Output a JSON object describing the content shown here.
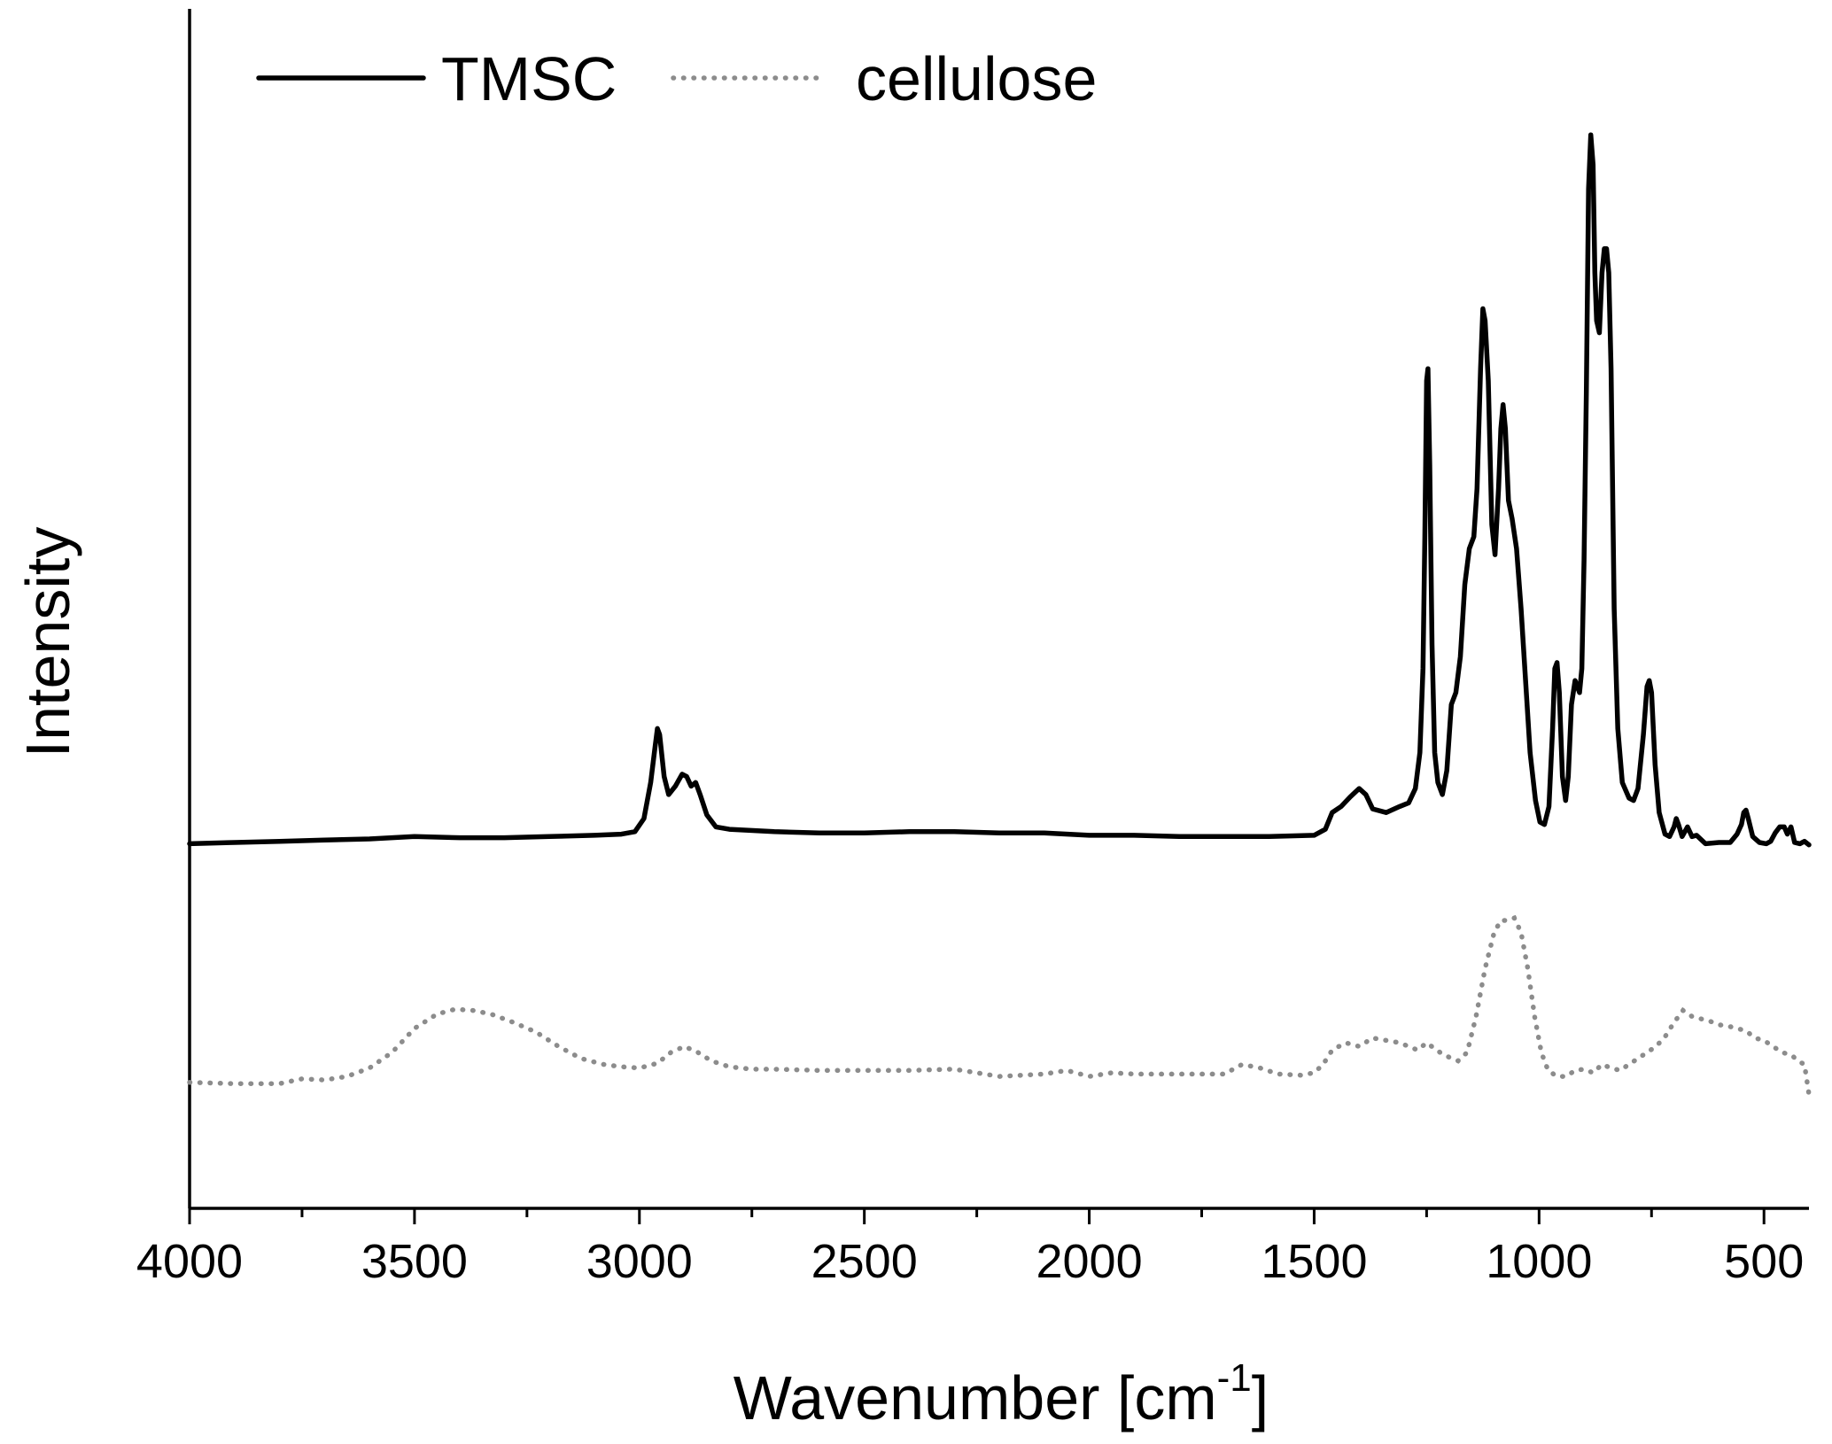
{
  "chart_data": {
    "type": "line",
    "title": "",
    "xlabel": "Wavenumber [cm",
    "xlabel_superscript": "-1",
    "xlabel_suffix": "]",
    "ylabel": "Intensity",
    "xlim": [
      4000,
      400
    ],
    "x_reversed": true,
    "ylim": [
      0,
      1
    ],
    "y_ticks_visible": false,
    "grid": false,
    "legend_position": "top-left",
    "x_ticks": [
      {
        "value": 4000,
        "label": "4000"
      },
      {
        "value": 3500,
        "label": "3500"
      },
      {
        "value": 3000,
        "label": "3000"
      },
      {
        "value": 2500,
        "label": "2500"
      },
      {
        "value": 2000,
        "label": "2000"
      },
      {
        "value": 1500,
        "label": "1500"
      },
      {
        "value": 1000,
        "label": "1000"
      },
      {
        "value": 500,
        "label": "500"
      }
    ],
    "x_minor_ticks": [
      3750,
      3250,
      2750,
      2250,
      1750,
      1250,
      750
    ],
    "series": [
      {
        "name": "TMSC",
        "style": "solid",
        "color": "#000000",
        "points": [
          [
            4000,
            0.304
          ],
          [
            3900,
            0.305
          ],
          [
            3800,
            0.306
          ],
          [
            3700,
            0.307
          ],
          [
            3600,
            0.308
          ],
          [
            3500,
            0.31
          ],
          [
            3400,
            0.309
          ],
          [
            3300,
            0.309
          ],
          [
            3200,
            0.31
          ],
          [
            3100,
            0.311
          ],
          [
            3040,
            0.312
          ],
          [
            3010,
            0.314
          ],
          [
            2990,
            0.325
          ],
          [
            2975,
            0.355
          ],
          [
            2965,
            0.385
          ],
          [
            2960,
            0.4
          ],
          [
            2955,
            0.395
          ],
          [
            2945,
            0.36
          ],
          [
            2935,
            0.345
          ],
          [
            2920,
            0.352
          ],
          [
            2905,
            0.362
          ],
          [
            2895,
            0.36
          ],
          [
            2885,
            0.352
          ],
          [
            2875,
            0.355
          ],
          [
            2865,
            0.345
          ],
          [
            2850,
            0.328
          ],
          [
            2830,
            0.318
          ],
          [
            2800,
            0.316
          ],
          [
            2700,
            0.314
          ],
          [
            2600,
            0.313
          ],
          [
            2500,
            0.313
          ],
          [
            2400,
            0.314
          ],
          [
            2300,
            0.314
          ],
          [
            2200,
            0.313
          ],
          [
            2100,
            0.313
          ],
          [
            2000,
            0.311
          ],
          [
            1900,
            0.311
          ],
          [
            1800,
            0.31
          ],
          [
            1700,
            0.31
          ],
          [
            1600,
            0.31
          ],
          [
            1500,
            0.311
          ],
          [
            1475,
            0.316
          ],
          [
            1460,
            0.33
          ],
          [
            1440,
            0.335
          ],
          [
            1420,
            0.343
          ],
          [
            1400,
            0.35
          ],
          [
            1385,
            0.345
          ],
          [
            1370,
            0.333
          ],
          [
            1340,
            0.33
          ],
          [
            1310,
            0.335
          ],
          [
            1290,
            0.338
          ],
          [
            1275,
            0.35
          ],
          [
            1265,
            0.38
          ],
          [
            1258,
            0.45
          ],
          [
            1254,
            0.56
          ],
          [
            1250,
            0.69
          ],
          [
            1247,
            0.7
          ],
          [
            1243,
            0.62
          ],
          [
            1238,
            0.47
          ],
          [
            1232,
            0.38
          ],
          [
            1225,
            0.355
          ],
          [
            1215,
            0.345
          ],
          [
            1205,
            0.365
          ],
          [
            1195,
            0.42
          ],
          [
            1185,
            0.43
          ],
          [
            1175,
            0.46
          ],
          [
            1165,
            0.52
          ],
          [
            1155,
            0.55
          ],
          [
            1145,
            0.56
          ],
          [
            1138,
            0.6
          ],
          [
            1130,
            0.7
          ],
          [
            1125,
            0.75
          ],
          [
            1120,
            0.74
          ],
          [
            1113,
            0.69
          ],
          [
            1105,
            0.57
          ],
          [
            1098,
            0.545
          ],
          [
            1090,
            0.6
          ],
          [
            1085,
            0.65
          ],
          [
            1080,
            0.67
          ],
          [
            1075,
            0.65
          ],
          [
            1068,
            0.59
          ],
          [
            1060,
            0.575
          ],
          [
            1050,
            0.55
          ],
          [
            1040,
            0.5
          ],
          [
            1030,
            0.44
          ],
          [
            1020,
            0.38
          ],
          [
            1008,
            0.34
          ],
          [
            998,
            0.322
          ],
          [
            988,
            0.32
          ],
          [
            978,
            0.335
          ],
          [
            970,
            0.4
          ],
          [
            965,
            0.45
          ],
          [
            960,
            0.455
          ],
          [
            955,
            0.43
          ],
          [
            948,
            0.36
          ],
          [
            941,
            0.34
          ],
          [
            935,
            0.36
          ],
          [
            928,
            0.42
          ],
          [
            920,
            0.44
          ],
          [
            910,
            0.43
          ],
          [
            905,
            0.45
          ],
          [
            900,
            0.54
          ],
          [
            895,
            0.68
          ],
          [
            890,
            0.85
          ],
          [
            885,
            0.895
          ],
          [
            880,
            0.87
          ],
          [
            876,
            0.78
          ],
          [
            872,
            0.74
          ],
          [
            866,
            0.73
          ],
          [
            860,
            0.78
          ],
          [
            855,
            0.8
          ],
          [
            850,
            0.8
          ],
          [
            845,
            0.78
          ],
          [
            840,
            0.7
          ],
          [
            833,
            0.5
          ],
          [
            825,
            0.4
          ],
          [
            815,
            0.355
          ],
          [
            800,
            0.342
          ],
          [
            790,
            0.34
          ],
          [
            780,
            0.35
          ],
          [
            768,
            0.395
          ],
          [
            760,
            0.435
          ],
          [
            755,
            0.44
          ],
          [
            750,
            0.43
          ],
          [
            742,
            0.37
          ],
          [
            733,
            0.33
          ],
          [
            720,
            0.312
          ],
          [
            710,
            0.31
          ],
          [
            700,
            0.318
          ],
          [
            695,
            0.325
          ],
          [
            690,
            0.32
          ],
          [
            682,
            0.31
          ],
          [
            670,
            0.318
          ],
          [
            660,
            0.31
          ],
          [
            650,
            0.311
          ],
          [
            630,
            0.304
          ],
          [
            600,
            0.305
          ],
          [
            575,
            0.305
          ],
          [
            560,
            0.312
          ],
          [
            550,
            0.32
          ],
          [
            545,
            0.33
          ],
          [
            540,
            0.332
          ],
          [
            535,
            0.325
          ],
          [
            525,
            0.31
          ],
          [
            510,
            0.305
          ],
          [
            495,
            0.304
          ],
          [
            485,
            0.306
          ],
          [
            475,
            0.313
          ],
          [
            465,
            0.318
          ],
          [
            455,
            0.318
          ],
          [
            448,
            0.312
          ],
          [
            440,
            0.318
          ],
          [
            432,
            0.305
          ],
          [
            420,
            0.304
          ],
          [
            410,
            0.306
          ],
          [
            400,
            0.303
          ]
        ]
      },
      {
        "name": "cellulose",
        "style": "dotted",
        "color": "#8c8c8c",
        "points": [
          [
            4000,
            0.105
          ],
          [
            3900,
            0.104
          ],
          [
            3800,
            0.104
          ],
          [
            3750,
            0.108
          ],
          [
            3700,
            0.107
          ],
          [
            3650,
            0.11
          ],
          [
            3600,
            0.117
          ],
          [
            3550,
            0.13
          ],
          [
            3500,
            0.15
          ],
          [
            3450,
            0.162
          ],
          [
            3410,
            0.166
          ],
          [
            3370,
            0.165
          ],
          [
            3330,
            0.162
          ],
          [
            3280,
            0.155
          ],
          [
            3230,
            0.147
          ],
          [
            3180,
            0.135
          ],
          [
            3130,
            0.125
          ],
          [
            3080,
            0.12
          ],
          [
            3040,
            0.118
          ],
          [
            3000,
            0.117
          ],
          [
            2960,
            0.121
          ],
          [
            2930,
            0.13
          ],
          [
            2900,
            0.135
          ],
          [
            2870,
            0.13
          ],
          [
            2840,
            0.123
          ],
          [
            2800,
            0.118
          ],
          [
            2750,
            0.116
          ],
          [
            2700,
            0.116
          ],
          [
            2600,
            0.115
          ],
          [
            2500,
            0.115
          ],
          [
            2400,
            0.115
          ],
          [
            2300,
            0.116
          ],
          [
            2200,
            0.11
          ],
          [
            2100,
            0.112
          ],
          [
            2050,
            0.115
          ],
          [
            2000,
            0.11
          ],
          [
            1950,
            0.113
          ],
          [
            1900,
            0.112
          ],
          [
            1800,
            0.112
          ],
          [
            1700,
            0.112
          ],
          [
            1660,
            0.12
          ],
          [
            1620,
            0.117
          ],
          [
            1580,
            0.112
          ],
          [
            1530,
            0.111
          ],
          [
            1500,
            0.113
          ],
          [
            1480,
            0.12
          ],
          [
            1460,
            0.132
          ],
          [
            1430,
            0.138
          ],
          [
            1400,
            0.135
          ],
          [
            1370,
            0.142
          ],
          [
            1340,
            0.14
          ],
          [
            1310,
            0.138
          ],
          [
            1290,
            0.135
          ],
          [
            1270,
            0.132
          ],
          [
            1250,
            0.138
          ],
          [
            1220,
            0.13
          ],
          [
            1200,
            0.126
          ],
          [
            1180,
            0.123
          ],
          [
            1160,
            0.13
          ],
          [
            1140,
            0.16
          ],
          [
            1120,
            0.2
          ],
          [
            1100,
            0.23
          ],
          [
            1085,
            0.24
          ],
          [
            1070,
            0.24
          ],
          [
            1055,
            0.242
          ],
          [
            1040,
            0.23
          ],
          [
            1025,
            0.2
          ],
          [
            1010,
            0.16
          ],
          [
            995,
            0.13
          ],
          [
            980,
            0.115
          ],
          [
            960,
            0.11
          ],
          [
            940,
            0.11
          ],
          [
            920,
            0.115
          ],
          [
            900,
            0.116
          ],
          [
            880,
            0.113
          ],
          [
            860,
            0.12
          ],
          [
            840,
            0.117
          ],
          [
            820,
            0.115
          ],
          [
            800,
            0.12
          ],
          [
            780,
            0.125
          ],
          [
            760,
            0.13
          ],
          [
            740,
            0.135
          ],
          [
            720,
            0.143
          ],
          [
            700,
            0.155
          ],
          [
            680,
            0.165
          ],
          [
            660,
            0.16
          ],
          [
            640,
            0.158
          ],
          [
            620,
            0.156
          ],
          [
            600,
            0.153
          ],
          [
            580,
            0.152
          ],
          [
            560,
            0.15
          ],
          [
            540,
            0.148
          ],
          [
            520,
            0.142
          ],
          [
            500,
            0.14
          ],
          [
            480,
            0.135
          ],
          [
            460,
            0.13
          ],
          [
            440,
            0.128
          ],
          [
            420,
            0.122
          ],
          [
            410,
            0.12
          ],
          [
            400,
            0.095
          ]
        ]
      }
    ]
  }
}
